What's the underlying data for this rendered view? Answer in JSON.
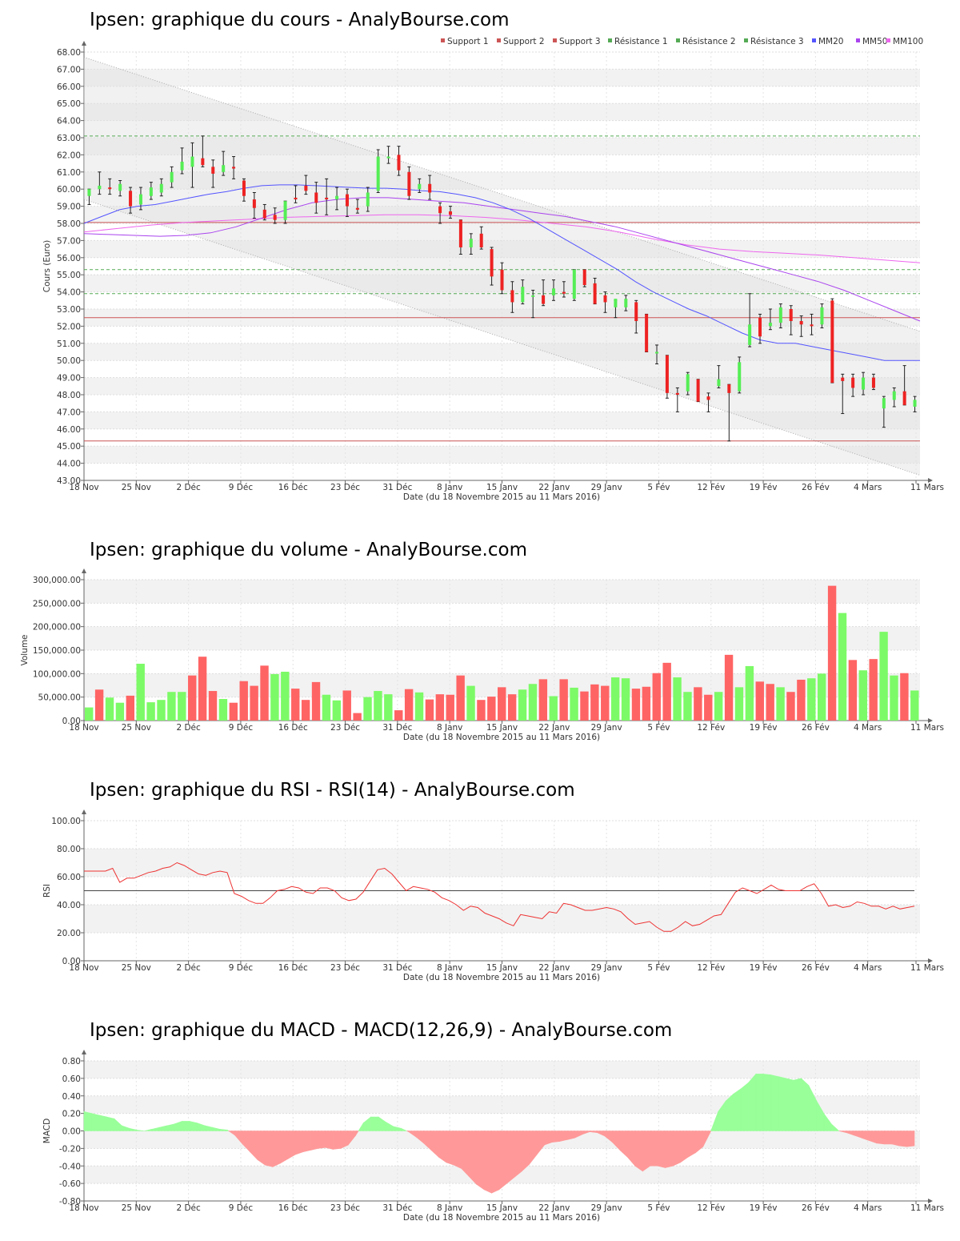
{
  "colors": {
    "up": "#55ee55",
    "down": "#ee2222",
    "vol_up": "#7dfa67",
    "vol_down": "#ff6464",
    "support": "#cc5555",
    "resistance": "#55aa55",
    "mm20": "#5555ff",
    "mm50": "#aa44ee",
    "mm100": "#ee66ee",
    "rsi": "#ee3333",
    "macd_pos": "#99ff99",
    "macd_neg": "#ff9999"
  },
  "x_axis": {
    "label": "Date (du 18 Novembre 2015 au 11 Mars 2016)",
    "ticks": [
      "18 Nov",
      "25 Nov",
      "2 Déc",
      "9 Déc",
      "16 Déc",
      "23 Déc",
      "31 Déc",
      "8 Janv",
      "15 Janv",
      "22 Janv",
      "29 Janv",
      "5 Fév",
      "12 Fév",
      "19 Fév",
      "26 Fév",
      "4 Mars",
      "11 Mars"
    ]
  },
  "chart_data": [
    {
      "type": "candlestick",
      "title": "Ipsen: graphique du cours - AnalyBourse.com",
      "ylabel": "Cours (Euro)",
      "ylim": [
        43,
        68
      ],
      "y_ticks": [
        "43.00",
        "44.00",
        "45.00",
        "46.00",
        "47.00",
        "48.00",
        "49.00",
        "50.00",
        "51.00",
        "52.00",
        "53.00",
        "54.00",
        "55.00",
        "56.00",
        "57.00",
        "58.00",
        "59.00",
        "60.00",
        "61.00",
        "62.00",
        "63.00",
        "64.00",
        "65.00",
        "66.00",
        "67.00",
        "68.00"
      ],
      "legend": [
        "Support 1",
        "Support 2",
        "Support 3",
        "Résistance 1",
        "Résistance 2",
        "Résistance 3",
        "MM20",
        "MM50",
        "MM100"
      ],
      "legend_position": "top-right",
      "levels": {
        "support_1": 58.05,
        "support_2": 52.5,
        "support_3": 45.3,
        "resistance_1": 63.1,
        "resistance_2": 55.3,
        "resistance_3": 53.9
      },
      "channel": {
        "upper": [
          67.7,
          51.7
        ],
        "lower": [
          59.4,
          43.3
        ]
      },
      "candles": [
        {
          "o": 59.6,
          "h": 60.0,
          "l": 59.1,
          "c": 60.0
        },
        {
          "o": 60.0,
          "h": 61.0,
          "l": 59.7,
          "c": 60.2
        },
        {
          "o": 60.1,
          "h": 60.6,
          "l": 59.7,
          "c": 60.0
        },
        {
          "o": 59.9,
          "h": 60.5,
          "l": 59.6,
          "c": 60.3
        },
        {
          "o": 59.9,
          "h": 60.1,
          "l": 58.6,
          "c": 59.0
        },
        {
          "o": 59.1,
          "h": 60.1,
          "l": 58.8,
          "c": 59.7
        },
        {
          "o": 59.6,
          "h": 60.4,
          "l": 59.4,
          "c": 60.1
        },
        {
          "o": 59.8,
          "h": 60.6,
          "l": 59.6,
          "c": 60.3
        },
        {
          "o": 60.4,
          "h": 61.3,
          "l": 60.1,
          "c": 61.0
        },
        {
          "o": 61.1,
          "h": 62.4,
          "l": 60.9,
          "c": 61.6
        },
        {
          "o": 61.3,
          "h": 62.7,
          "l": 60.1,
          "c": 61.9
        },
        {
          "o": 61.8,
          "h": 63.1,
          "l": 61.3,
          "c": 61.4
        },
        {
          "o": 61.3,
          "h": 61.7,
          "l": 60.1,
          "c": 60.9
        },
        {
          "o": 61.0,
          "h": 62.2,
          "l": 60.8,
          "c": 61.4
        },
        {
          "o": 61.3,
          "h": 61.9,
          "l": 60.6,
          "c": 61.2
        },
        {
          "o": 60.5,
          "h": 60.6,
          "l": 59.3,
          "c": 59.6
        },
        {
          "o": 59.4,
          "h": 59.8,
          "l": 58.3,
          "c": 58.9
        },
        {
          "o": 58.8,
          "h": 59.1,
          "l": 58.2,
          "c": 58.3
        },
        {
          "o": 58.5,
          "h": 58.9,
          "l": 58.0,
          "c": 58.2
        },
        {
          "o": 58.2,
          "h": 59.3,
          "l": 58.0,
          "c": 59.3
        },
        {
          "o": 59.5,
          "h": 60.2,
          "l": 59.2,
          "c": 59.4
        },
        {
          "o": 60.2,
          "h": 60.8,
          "l": 59.7,
          "c": 59.9
        },
        {
          "o": 59.8,
          "h": 60.4,
          "l": 58.6,
          "c": 59.2
        },
        {
          "o": 59.5,
          "h": 60.6,
          "l": 58.5,
          "c": 59.4
        },
        {
          "o": 59.4,
          "h": 60.1,
          "l": 58.8,
          "c": 59.6
        },
        {
          "o": 59.7,
          "h": 60.0,
          "l": 58.4,
          "c": 59.0
        },
        {
          "o": 58.9,
          "h": 59.4,
          "l": 58.6,
          "c": 58.8
        },
        {
          "o": 59.0,
          "h": 60.1,
          "l": 58.7,
          "c": 59.8
        },
        {
          "o": 59.9,
          "h": 62.3,
          "l": 59.8,
          "c": 61.9
        },
        {
          "o": 61.8,
          "h": 62.5,
          "l": 61.5,
          "c": 61.9
        },
        {
          "o": 62.0,
          "h": 62.5,
          "l": 60.8,
          "c": 61.1
        },
        {
          "o": 61.0,
          "h": 61.3,
          "l": 59.4,
          "c": 59.6
        },
        {
          "o": 60.0,
          "h": 60.6,
          "l": 59.8,
          "c": 60.3
        },
        {
          "o": 60.3,
          "h": 60.8,
          "l": 59.4,
          "c": 59.8
        },
        {
          "o": 59.0,
          "h": 59.2,
          "l": 58.0,
          "c": 58.6
        },
        {
          "o": 58.7,
          "h": 59.0,
          "l": 58.3,
          "c": 58.5
        },
        {
          "o": 58.2,
          "h": 58.2,
          "l": 56.2,
          "c": 56.6
        },
        {
          "o": 56.6,
          "h": 57.4,
          "l": 56.2,
          "c": 57.1
        },
        {
          "o": 57.4,
          "h": 57.8,
          "l": 56.5,
          "c": 56.6
        },
        {
          "o": 56.5,
          "h": 56.6,
          "l": 54.4,
          "c": 54.9
        },
        {
          "o": 55.3,
          "h": 55.7,
          "l": 53.9,
          "c": 54.1
        },
        {
          "o": 54.1,
          "h": 54.6,
          "l": 52.8,
          "c": 53.4
        },
        {
          "o": 53.4,
          "h": 54.7,
          "l": 53.3,
          "c": 54.3
        },
        {
          "o": 53.8,
          "h": 54.1,
          "l": 52.5,
          "c": 53.8
        },
        {
          "o": 53.8,
          "h": 54.7,
          "l": 53.2,
          "c": 53.3
        },
        {
          "o": 53.8,
          "h": 54.7,
          "l": 53.5,
          "c": 54.2
        },
        {
          "o": 54.0,
          "h": 54.6,
          "l": 53.7,
          "c": 53.9
        },
        {
          "o": 53.6,
          "h": 55.3,
          "l": 53.5,
          "c": 55.3
        },
        {
          "o": 55.3,
          "h": 55.3,
          "l": 54.3,
          "c": 54.4
        },
        {
          "o": 54.5,
          "h": 54.8,
          "l": 53.3,
          "c": 53.3
        },
        {
          "o": 53.8,
          "h": 54.0,
          "l": 52.8,
          "c": 53.4
        },
        {
          "o": 53.1,
          "h": 53.5,
          "l": 52.5,
          "c": 53.6
        },
        {
          "o": 53.1,
          "h": 53.8,
          "l": 52.9,
          "c": 53.6
        },
        {
          "o": 53.4,
          "h": 53.5,
          "l": 51.6,
          "c": 52.3
        },
        {
          "o": 52.7,
          "h": 52.7,
          "l": 50.5,
          "c": 50.5
        },
        {
          "o": 50.5,
          "h": 50.9,
          "l": 49.8,
          "c": 50.5
        },
        {
          "o": 50.3,
          "h": 50.3,
          "l": 47.8,
          "c": 48.1
        },
        {
          "o": 48.1,
          "h": 48.4,
          "l": 47.0,
          "c": 48.0
        },
        {
          "o": 48.2,
          "h": 49.3,
          "l": 48.0,
          "c": 49.2
        },
        {
          "o": 48.9,
          "h": 48.9,
          "l": 47.6,
          "c": 47.6
        },
        {
          "o": 47.9,
          "h": 48.1,
          "l": 47.0,
          "c": 47.7
        },
        {
          "o": 48.5,
          "h": 49.7,
          "l": 48.4,
          "c": 48.9
        },
        {
          "o": 48.6,
          "h": 48.6,
          "l": 45.3,
          "c": 48.1
        },
        {
          "o": 48.2,
          "h": 50.2,
          "l": 48.1,
          "c": 49.9
        },
        {
          "o": 50.9,
          "h": 53.9,
          "l": 50.8,
          "c": 52.1
        },
        {
          "o": 52.5,
          "h": 52.7,
          "l": 51.0,
          "c": 51.4
        },
        {
          "o": 52.0,
          "h": 53.0,
          "l": 51.8,
          "c": 52.2
        },
        {
          "o": 52.2,
          "h": 53.3,
          "l": 51.9,
          "c": 53.1
        },
        {
          "o": 53.0,
          "h": 53.2,
          "l": 51.5,
          "c": 52.3
        },
        {
          "o": 52.3,
          "h": 52.6,
          "l": 51.4,
          "c": 52.1
        },
        {
          "o": 52.1,
          "h": 52.7,
          "l": 51.5,
          "c": 52.0
        },
        {
          "o": 52.1,
          "h": 53.3,
          "l": 51.9,
          "c": 53.1
        },
        {
          "o": 53.5,
          "h": 53.6,
          "l": 48.7,
          "c": 48.7
        },
        {
          "o": 49.0,
          "h": 49.2,
          "l": 46.9,
          "c": 48.8
        },
        {
          "o": 49.0,
          "h": 49.2,
          "l": 47.9,
          "c": 48.4
        },
        {
          "o": 48.3,
          "h": 49.3,
          "l": 48.0,
          "c": 49.0
        },
        {
          "o": 49.0,
          "h": 49.2,
          "l": 48.3,
          "c": 48.4
        },
        {
          "o": 47.2,
          "h": 47.9,
          "l": 46.1,
          "c": 47.8
        },
        {
          "o": 47.7,
          "h": 48.4,
          "l": 47.3,
          "c": 48.2
        },
        {
          "o": 48.2,
          "h": 49.7,
          "l": 47.4,
          "c": 47.4
        },
        {
          "o": 47.3,
          "h": 47.9,
          "l": 47.0,
          "c": 47.7
        }
      ],
      "mm20": [
        58.0,
        58.4,
        58.8,
        59.0,
        59.1,
        59.3,
        59.5,
        59.7,
        59.85,
        60.05,
        60.2,
        60.25,
        60.25,
        60.2,
        60.15,
        60.1,
        60.05,
        60.05,
        60.0,
        59.9,
        59.85,
        59.7,
        59.5,
        59.2,
        58.8,
        58.3,
        57.7,
        57.1,
        56.5,
        55.9,
        55.3,
        54.6,
        54.0,
        53.5,
        53.0,
        52.6,
        52.1,
        51.6,
        51.2,
        51.0,
        51.0,
        50.8,
        50.6,
        50.4,
        50.2,
        50.0,
        50.0,
        50.0
      ],
      "mm50": [
        57.4,
        57.35,
        57.3,
        57.25,
        57.3,
        57.45,
        57.8,
        58.3,
        58.8,
        59.2,
        59.4,
        59.5,
        59.5,
        59.4,
        59.3,
        59.2,
        59.0,
        58.8,
        58.6,
        58.4,
        58.1,
        57.8,
        57.4,
        57.0,
        56.6,
        56.2,
        55.8,
        55.4,
        55.0,
        54.6,
        54.1,
        53.5,
        52.9,
        52.3
      ],
      "mm100": [
        57.5,
        57.7,
        57.9,
        58.05,
        58.15,
        58.25,
        58.35,
        58.4,
        58.45,
        58.5,
        58.5,
        58.45,
        58.35,
        58.2,
        58.0,
        57.8,
        57.5,
        57.1,
        56.75,
        56.5,
        56.35,
        56.25,
        56.15,
        56.0,
        55.85,
        55.7
      ]
    },
    {
      "type": "bar",
      "title": "Ipsen: graphique du volume - AnalyBourse.com",
      "ylabel": "Volume",
      "ylim": [
        0,
        300000
      ],
      "y_ticks": [
        "0.00",
        "50,000.00",
        "100,000.00",
        "150,000.00",
        "200,000.00",
        "250,000.00",
        "300,000.00"
      ],
      "values": [
        28000,
        66000,
        49000,
        38000,
        53000,
        121000,
        39000,
        44000,
        61000,
        61000,
        96000,
        136000,
        63000,
        46000,
        38000,
        84000,
        74000,
        117000,
        99000,
        104000,
        68000,
        44000,
        82000,
        55000,
        43000,
        64000,
        16000,
        50000,
        63000,
        56000,
        22000,
        67000,
        60000,
        45000,
        56000,
        55000,
        96000,
        74000,
        44000,
        51000,
        71000,
        56000,
        66000,
        78000,
        88000,
        52000,
        88000,
        70000,
        62000,
        77000,
        74000,
        92000,
        90000,
        68000,
        72000,
        101000,
        123000,
        92000,
        61000,
        71000,
        55000,
        61000,
        140000,
        71000,
        116000,
        83000,
        78000,
        71000,
        61000,
        87000,
        90000,
        100000,
        287000,
        229000,
        129000,
        107000,
        131000,
        189000,
        96000,
        101000,
        64000
      ],
      "up": [
        true,
        false,
        true,
        true,
        false,
        true,
        true,
        true,
        true,
        true,
        false,
        false,
        false,
        true,
        false,
        false,
        false,
        false,
        true,
        true,
        false,
        false,
        false,
        true,
        true,
        false,
        false,
        true,
        true,
        true,
        false,
        false,
        true,
        false,
        false,
        false,
        false,
        true,
        false,
        false,
        false,
        false,
        true,
        true,
        false,
        true,
        false,
        true,
        false,
        false,
        false,
        true,
        true,
        false,
        false,
        false,
        false,
        true,
        true,
        false,
        false,
        true,
        false,
        true,
        true,
        false,
        false,
        true,
        false,
        false,
        true,
        true,
        false,
        true,
        false,
        true,
        false,
        true,
        true,
        false,
        true
      ]
    },
    {
      "type": "line",
      "title": "Ipsen: graphique du RSI - RSI(14) - AnalyBourse.com",
      "ylabel": "RSI",
      "ylim": [
        0,
        100
      ],
      "y_ticks": [
        "0.00",
        "20.00",
        "40.00",
        "60.00",
        "80.00",
        "100.00"
      ],
      "reference": 50,
      "values": [
        64,
        64,
        64,
        64,
        66,
        56,
        59,
        59,
        61,
        63,
        64,
        66,
        67,
        70,
        68,
        65,
        62,
        61,
        63,
        64,
        63,
        48,
        46,
        43,
        41,
        41,
        45,
        50,
        51,
        53,
        52,
        49,
        48,
        52,
        52,
        50,
        45,
        43,
        44,
        49,
        57,
        65,
        66,
        62,
        56,
        50,
        53,
        52,
        51,
        49,
        45,
        43,
        40,
        36,
        39,
        38,
        34,
        32,
        30,
        27,
        25,
        33,
        32,
        31,
        30,
        35,
        34,
        41,
        40,
        38,
        36,
        36,
        37,
        38,
        37,
        35,
        30,
        26,
        27,
        28,
        24,
        21,
        21,
        24,
        28,
        25,
        26,
        29,
        32,
        33,
        41,
        49,
        52,
        50,
        48,
        51,
        54,
        51,
        50,
        50,
        50,
        53,
        55,
        48,
        39,
        40,
        38,
        39,
        42,
        41,
        39,
        39,
        37,
        39,
        37,
        38,
        39
      ]
    },
    {
      "type": "area",
      "title": "Ipsen: graphique du MACD - MACD(12,26,9) - AnalyBourse.com",
      "ylabel": "MACD",
      "ylim": [
        -0.8,
        0.8
      ],
      "y_ticks": [
        "-0.80",
        "-0.60",
        "-0.40",
        "-0.20",
        "0.00",
        "0.20",
        "0.40",
        "0.60",
        "0.80"
      ],
      "values": [
        0.22,
        0.2,
        0.18,
        0.16,
        0.14,
        0.06,
        0.03,
        0.01,
        0.0,
        0.02,
        0.04,
        0.06,
        0.08,
        0.11,
        0.11,
        0.09,
        0.06,
        0.04,
        0.02,
        0.01,
        -0.05,
        -0.15,
        -0.24,
        -0.33,
        -0.39,
        -0.41,
        -0.37,
        -0.32,
        -0.27,
        -0.24,
        -0.22,
        -0.2,
        -0.19,
        -0.21,
        -0.2,
        -0.16,
        -0.05,
        0.09,
        0.16,
        0.16,
        0.1,
        0.05,
        0.03,
        -0.01,
        -0.07,
        -0.14,
        -0.22,
        -0.3,
        -0.36,
        -0.39,
        -0.43,
        -0.52,
        -0.61,
        -0.67,
        -0.71,
        -0.67,
        -0.6,
        -0.53,
        -0.46,
        -0.38,
        -0.27,
        -0.16,
        -0.13,
        -0.12,
        -0.1,
        -0.08,
        -0.04,
        -0.01,
        -0.02,
        -0.06,
        -0.13,
        -0.22,
        -0.3,
        -0.4,
        -0.46,
        -0.4,
        -0.4,
        -0.42,
        -0.4,
        -0.36,
        -0.3,
        -0.25,
        -0.18,
        -0.01,
        0.22,
        0.34,
        0.42,
        0.48,
        0.55,
        0.65,
        0.65,
        0.64,
        0.62,
        0.6,
        0.58,
        0.6,
        0.52,
        0.35,
        0.2,
        0.08,
        0.0,
        -0.02,
        -0.05,
        -0.08,
        -0.11,
        -0.14,
        -0.15,
        -0.15,
        -0.17,
        -0.18,
        -0.17
      ]
    }
  ]
}
